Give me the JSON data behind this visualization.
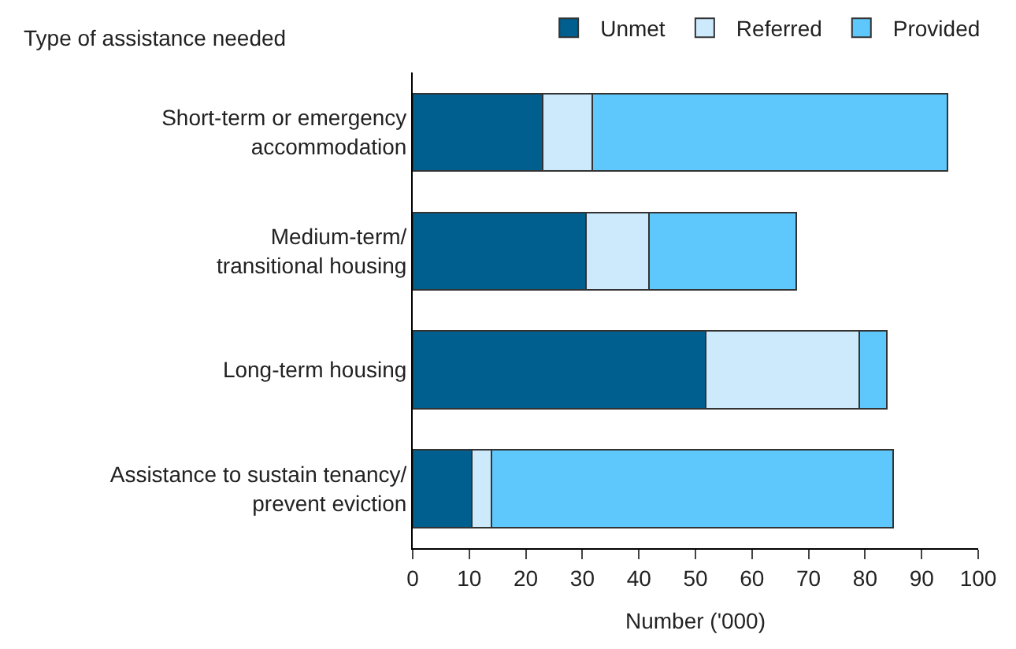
{
  "chart_data": {
    "type": "bar",
    "orientation": "horizontal",
    "stacked": true,
    "ylabel": "Type of assistance needed",
    "xlabel": "Number ('000)",
    "categories": [
      "Short-term or emergency\naccommodation",
      "Medium-term/\ntransitional housing",
      "Long-term housing",
      "Assistance to sustain tenancy/\nprevent eviction"
    ],
    "series": [
      {
        "name": "Unmet",
        "color": "#005f8f",
        "values": [
          23.0,
          30.6,
          51.8,
          10.4
        ]
      },
      {
        "name": "Referred",
        "color": "#cdeafd",
        "values": [
          8.8,
          11.2,
          27.2,
          3.5
        ]
      },
      {
        "name": "Provided",
        "color": "#5ec8fc",
        "values": [
          62.8,
          26.0,
          4.8,
          71.0
        ]
      }
    ],
    "xlim": [
      0,
      100
    ],
    "xticks": [
      0,
      10,
      20,
      30,
      40,
      50,
      60,
      70,
      80,
      90,
      100
    ],
    "legend": "top"
  }
}
